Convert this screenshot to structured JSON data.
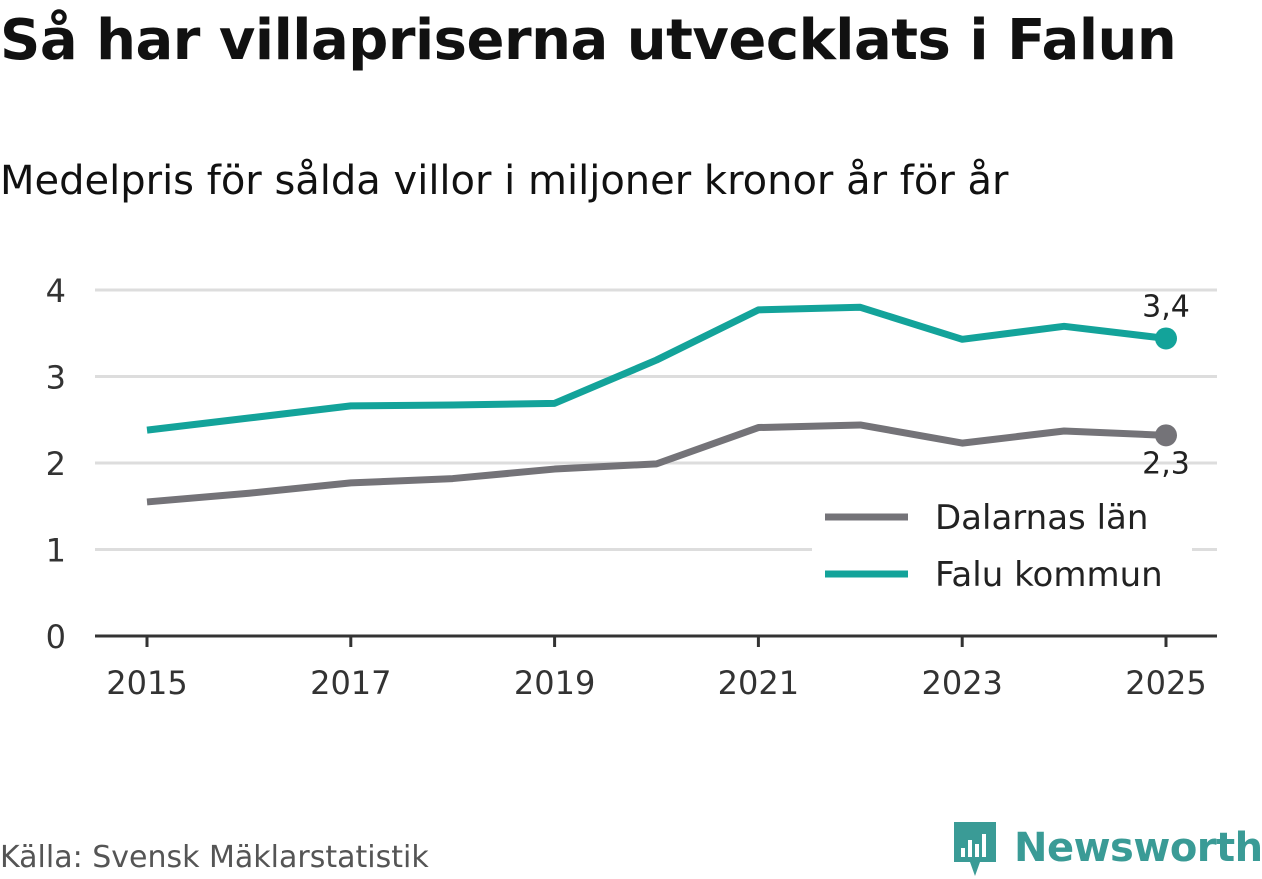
{
  "header": {
    "title": "Så har villapriserna utvecklats i Falun",
    "subtitle": "Medelpris för sålda villor i miljoner kronor år för år"
  },
  "footer": {
    "source": "Källa: Svensk Mäklarstatistik",
    "brand": "Newsworthy"
  },
  "colors": {
    "falu": "#13a39a",
    "dalarna": "#747378",
    "grid": "#dddddd",
    "axis": "#333333",
    "brand": "#3a9b96"
  },
  "chart_data": {
    "type": "line",
    "title": "Så har villapriserna utvecklats i Falun",
    "subtitle": "Medelpris för sålda villor i miljoner kronor år för år",
    "xlabel": "",
    "ylabel": "",
    "x": [
      2015,
      2016,
      2017,
      2018,
      2019,
      2020,
      2021,
      2022,
      2023,
      2024,
      2025
    ],
    "xticks": [
      "2015",
      "2017",
      "2019",
      "2021",
      "2023",
      "2025"
    ],
    "yticks": [
      "0",
      "1",
      "2",
      "3",
      "4"
    ],
    "ylim": [
      0,
      4
    ],
    "xlim": [
      2015,
      2025
    ],
    "grid": true,
    "legend_position": "bottom-right",
    "series": [
      {
        "name": "Dalarnas län",
        "color": "#747378",
        "values": [
          1.55,
          1.65,
          1.77,
          1.82,
          1.93,
          1.99,
          2.41,
          2.44,
          2.23,
          2.37,
          2.32
        ],
        "end_label": "2,3"
      },
      {
        "name": "Falu kommun",
        "color": "#13a39a",
        "values": [
          2.38,
          2.52,
          2.66,
          2.67,
          2.69,
          3.19,
          3.77,
          3.8,
          3.43,
          3.58,
          3.44
        ],
        "end_label": "3,4"
      }
    ]
  }
}
